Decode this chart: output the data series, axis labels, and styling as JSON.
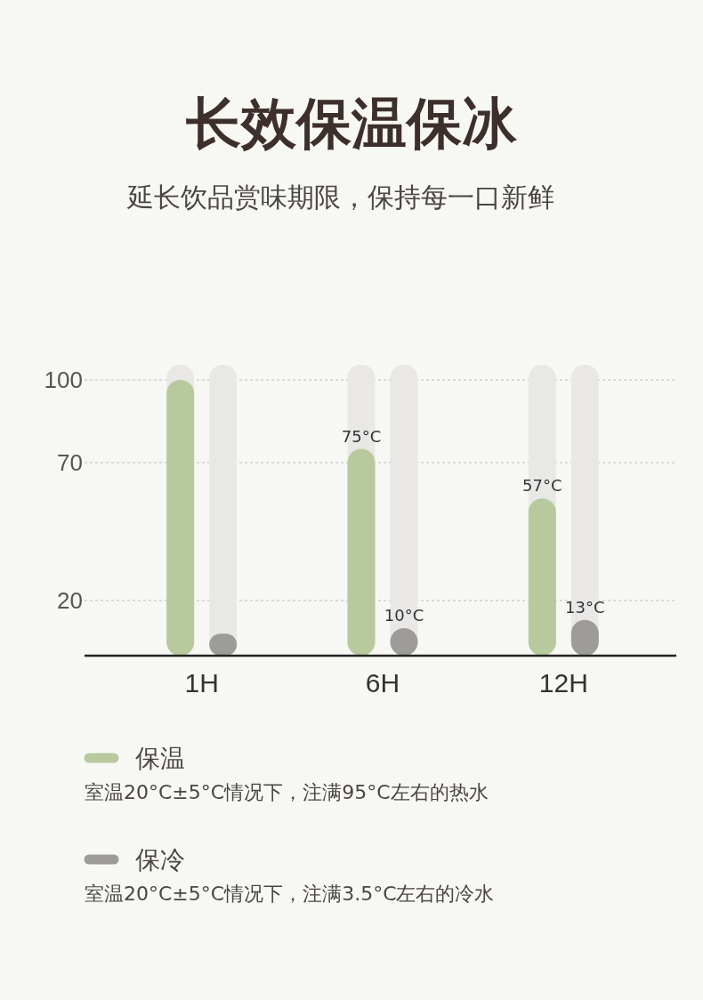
{
  "chart_data": {
    "type": "bar",
    "title": "长效保温保冰",
    "subtitle": "延长饮品赏味期限，保持每一口新鲜",
    "categories": [
      "1H",
      "6H",
      "12H"
    ],
    "series": [
      {
        "name": "保温",
        "color": "#b8c99d",
        "values": [
          100,
          75,
          57
        ],
        "value_labels": [
          null,
          "75°C",
          "57°C"
        ]
      },
      {
        "name": "保冷",
        "color": "#9e9c98",
        "values": [
          8,
          10,
          13
        ],
        "value_labels": [
          null,
          "10°C",
          "13°C"
        ]
      }
    ],
    "ylim": [
      0,
      100
    ],
    "yticks": [
      20,
      70,
      100
    ],
    "grid": "y",
    "legend": "bottom",
    "annotations": [
      "室温20°C±5°C情况下，注满95°C左右的热水",
      "室温20°C±5°C情况下，注满3.5°C左右的冷水"
    ]
  }
}
